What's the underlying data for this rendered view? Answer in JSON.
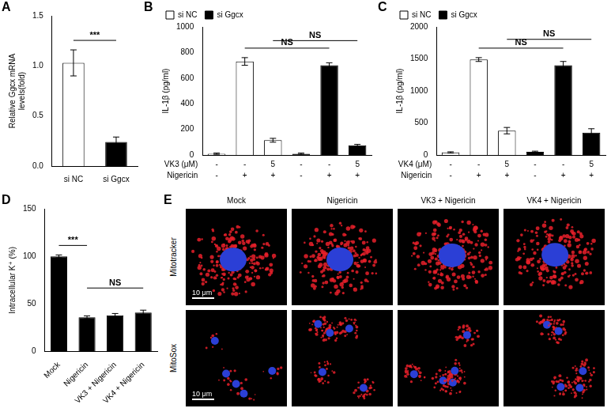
{
  "chart_data": [
    {
      "type": "bar",
      "title": "A",
      "y_label": [
        "Relative Ggcx mRNA",
        "levels(fold)"
      ],
      "categories": [
        "si NC",
        "si Ggcx"
      ],
      "values": [
        1.03,
        0.24
      ],
      "errors": [
        0.13,
        0.05
      ],
      "colors": [
        "#ffffff",
        "#000000"
      ],
      "ylim": [
        0,
        1.5
      ],
      "yticks": [
        {
          "value": 0,
          "label": "0.0"
        },
        0.5,
        {
          "value": 1,
          "label": "1.0"
        },
        1.5
      ],
      "grid": false,
      "annotations": [
        {
          "from": 0,
          "to": 1,
          "text": "***"
        }
      ]
    },
    {
      "type": "bar",
      "title": "B",
      "y_label": "IL-1β (pg/ml)",
      "row_labels": [
        "VK3 (μM)",
        "Nigericin"
      ],
      "categories": [
        [
          "-",
          "-"
        ],
        [
          "-",
          "+"
        ],
        [
          "5",
          "+"
        ],
        [
          "-",
          "-"
        ],
        [
          "-",
          "+"
        ],
        [
          "5",
          "+"
        ]
      ],
      "series": [
        {
          "name": "si NC",
          "color": "#ffffff",
          "values": [
            10,
            730,
            115,
            null,
            null,
            null
          ],
          "errors": [
            5,
            30,
            15,
            null,
            null,
            null
          ]
        },
        {
          "name": "si Ggcx",
          "color": "#000000",
          "values": [
            null,
            null,
            null,
            10,
            700,
            75
          ],
          "errors": [
            null,
            null,
            null,
            5,
            20,
            8
          ]
        }
      ],
      "ylim": [
        0,
        1000
      ],
      "yticks": [
        0,
        200,
        400,
        600,
        800,
        1000
      ],
      "grid": false,
      "legend": "top left",
      "annotations": [
        {
          "from": 1,
          "to": 4,
          "text": "NS"
        },
        {
          "from": 2,
          "to": 5,
          "text": "NS"
        }
      ]
    },
    {
      "type": "bar",
      "title": "C",
      "y_label": "IL-1β (pg/ml)",
      "row_labels": [
        "VK4 (μM)",
        "Nigericin"
      ],
      "categories": [
        [
          "-",
          "-"
        ],
        [
          "-",
          "+"
        ],
        [
          "5",
          "+"
        ],
        [
          "-",
          "-"
        ],
        [
          "-",
          "+"
        ],
        [
          "5",
          "+"
        ]
      ],
      "series": [
        {
          "name": "si NC",
          "color": "#ffffff",
          "values": [
            40,
            1490,
            380,
            null,
            null,
            null
          ],
          "errors": [
            10,
            30,
            50,
            null,
            null,
            null
          ]
        },
        {
          "name": "si Ggcx",
          "color": "#000000",
          "values": [
            null,
            null,
            null,
            50,
            1400,
            350
          ],
          "errors": [
            null,
            null,
            null,
            10,
            60,
            60
          ]
        }
      ],
      "ylim": [
        0,
        2000
      ],
      "yticks": [
        0,
        500,
        1000,
        1500,
        2000
      ],
      "grid": false,
      "legend": "top left",
      "annotations": [
        {
          "from": 1,
          "to": 4,
          "text": "NS"
        },
        {
          "from": 2,
          "to": 5,
          "text": "NS"
        }
      ]
    },
    {
      "type": "bar",
      "title": "D",
      "y_label": "Intracellular K⁺ (%)",
      "categories": [
        "Mock",
        "Nigericin",
        "VK3 + Nigericin",
        "VK4 + Nigericin"
      ],
      "values": [
        100,
        36,
        38,
        41
      ],
      "errors": [
        1.5,
        1.5,
        2,
        2.5
      ],
      "color": "#000000",
      "ylim": [
        0,
        150
      ],
      "yticks": [
        0,
        50,
        100,
        150
      ],
      "grid": false,
      "annotations": [
        {
          "from": 0,
          "to": 1,
          "text": "***"
        },
        {
          "from": 1,
          "to": 3,
          "text": "NS"
        }
      ]
    }
  ],
  "image_panel": {
    "title": "E",
    "columns": [
      "Mock",
      "Nigericin",
      "VK3 + Nigericin",
      "VK4 + Nigericin"
    ],
    "rows": [
      {
        "label": "Mitotracker",
        "scale_bar": "10 μm"
      },
      {
        "label": "MitoSox",
        "scale_bar": "10 μm"
      }
    ]
  }
}
